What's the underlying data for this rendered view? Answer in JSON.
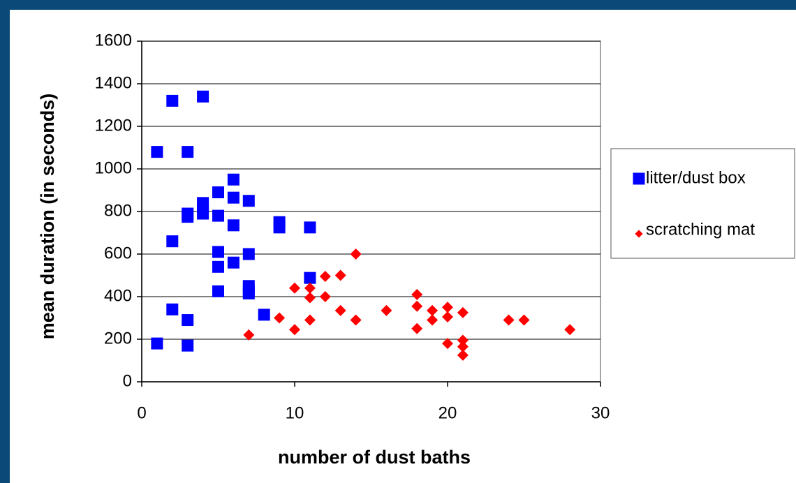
{
  "chart_data": {
    "type": "scatter",
    "xlabel": "number of dust baths",
    "ylabel": "mean duration (in seconds)",
    "xlim": [
      0,
      30
    ],
    "xticks": [
      0,
      10,
      20,
      30
    ],
    "ylim": [
      0,
      1600
    ],
    "yticks": [
      0,
      200,
      400,
      600,
      800,
      1000,
      1200,
      1400,
      1600
    ],
    "grid": true,
    "legend": "right",
    "series": [
      {
        "name": "litter/dust box",
        "color": "#0000ff",
        "marker": "square",
        "x": [
          1,
          1,
          2,
          2,
          2,
          3,
          3,
          3,
          3,
          3,
          4,
          4,
          4,
          4,
          5,
          5,
          5,
          5,
          5,
          6,
          6,
          6,
          6,
          7,
          7,
          7,
          7,
          7,
          8,
          9,
          9,
          11,
          11
        ],
        "values": [
          180,
          1080,
          1320,
          660,
          340,
          1080,
          790,
          775,
          290,
          170,
          1340,
          840,
          820,
          790,
          890,
          780,
          610,
          540,
          425,
          950,
          865,
          735,
          560,
          850,
          600,
          450,
          430,
          415,
          315,
          750,
          725,
          488,
          725
        ]
      },
      {
        "name": "scratching mat",
        "color": "#ff0000",
        "marker": "diamond",
        "x": [
          7,
          9,
          10,
          10,
          11,
          11,
          11,
          12,
          12,
          13,
          13,
          14,
          14,
          16,
          18,
          18,
          18,
          19,
          19,
          20,
          20,
          20,
          21,
          21,
          21,
          21,
          24,
          25,
          28
        ],
        "values": [
          220,
          300,
          440,
          245,
          440,
          395,
          290,
          495,
          400,
          500,
          335,
          600,
          290,
          335,
          410,
          355,
          250,
          335,
          290,
          350,
          305,
          180,
          325,
          195,
          165,
          125,
          290,
          290,
          245
        ]
      }
    ]
  }
}
